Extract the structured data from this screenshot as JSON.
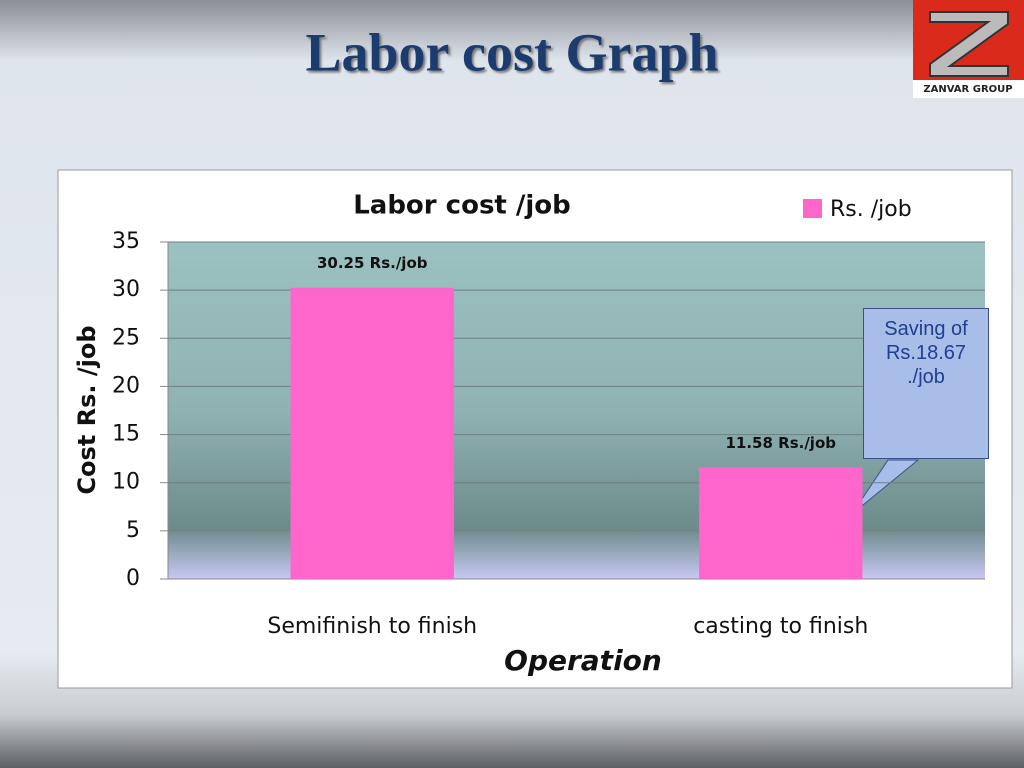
{
  "slide_title": "Labor cost Graph",
  "logo": {
    "text": "ZANVAR GROUP"
  },
  "chart_data": {
    "type": "bar",
    "title": "Labor cost /job",
    "categories": [
      "Semifinish to finish",
      "casting to finish"
    ],
    "series": [
      {
        "name": "Rs. /job",
        "color": "#ff66cc",
        "values": [
          30.25,
          11.58
        ],
        "value_labels": [
          "30.25 Rs./job",
          "11.58 Rs./job"
        ]
      }
    ],
    "ylim": [
      0,
      35
    ],
    "yticks": [
      0,
      5,
      10,
      15,
      20,
      25,
      30,
      35
    ],
    "xlabel": "Operation",
    "ylabel": "Cost Rs. /job",
    "grid": true,
    "legend": "top-right",
    "annotation": "Saving of Rs.18.67 ./job"
  }
}
